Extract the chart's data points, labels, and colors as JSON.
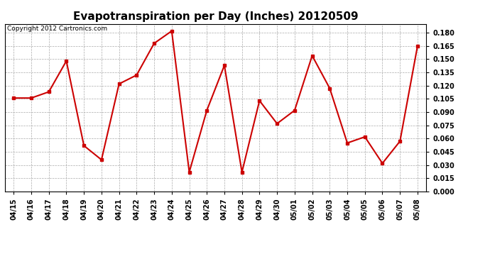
{
  "title": "Evapotranspiration per Day (Inches) 20120509",
  "copyright_text": "Copyright 2012 Cartronics.com",
  "x_labels": [
    "04/15",
    "04/16",
    "04/17",
    "04/18",
    "04/19",
    "04/20",
    "04/21",
    "04/22",
    "04/23",
    "04/24",
    "04/25",
    "04/26",
    "04/27",
    "04/28",
    "04/29",
    "04/30",
    "05/01",
    "05/02",
    "05/03",
    "05/04",
    "05/05",
    "05/06",
    "05/07",
    "05/08"
  ],
  "y_values": [
    0.106,
    0.106,
    0.113,
    0.148,
    0.052,
    0.036,
    0.122,
    0.132,
    0.168,
    0.182,
    0.022,
    0.092,
    0.143,
    0.022,
    0.103,
    0.077,
    0.092,
    0.154,
    0.117,
    0.055,
    0.062,
    0.032,
    0.057,
    0.165
  ],
  "line_color": "#cc0000",
  "marker": "s",
  "marker_size": 3,
  "line_width": 1.5,
  "ylim": [
    0.0,
    0.19
  ],
  "yticks": [
    0.0,
    0.015,
    0.03,
    0.045,
    0.06,
    0.075,
    0.09,
    0.105,
    0.12,
    0.135,
    0.15,
    0.165,
    0.18
  ],
  "background_color": "#ffffff",
  "grid_color": "#aaaaaa",
  "title_fontsize": 11,
  "tick_fontsize": 7,
  "copyright_fontsize": 6.5
}
